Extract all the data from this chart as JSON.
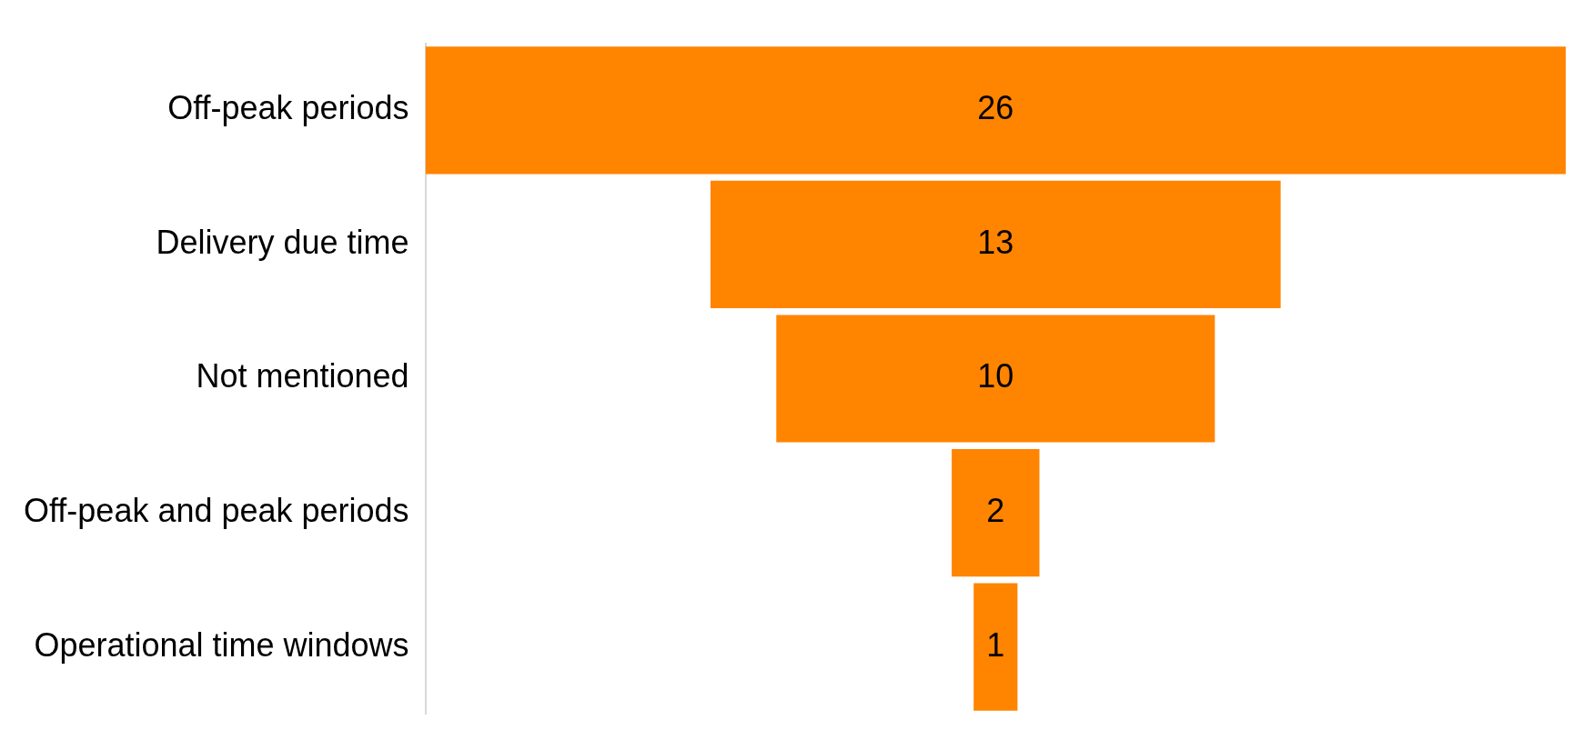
{
  "chart_data": {
    "type": "other",
    "categories": [
      "Off-peak periods",
      "Delivery due time",
      "Not mentioned",
      "Off-peak and peak periods",
      "Operational time windows"
    ],
    "values": [
      26,
      13,
      10,
      2,
      1
    ],
    "color": "#ff8400",
    "data_labels": true
  }
}
